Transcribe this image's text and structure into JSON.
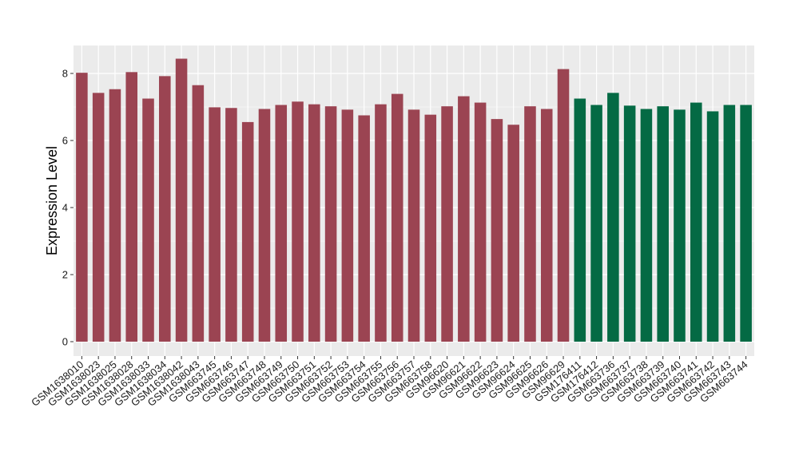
{
  "chart_data": {
    "type": "bar",
    "title": "",
    "xlabel": "",
    "ylabel": "Expression Level",
    "ylim": [
      0,
      8.8
    ],
    "yticks": [
      0,
      2,
      4,
      6,
      8
    ],
    "grid": true,
    "legend": "none",
    "colors": {
      "group1": "#9b4452",
      "group2": "#046a44",
      "panel": "#ebebeb",
      "grid": "#ffffff"
    },
    "categories": [
      "GSM1638010",
      "GSM1638023",
      "GSM1638025",
      "GSM1638028",
      "GSM1638033",
      "GSM1638034",
      "GSM1638042",
      "GSM1638043",
      "GSM663745",
      "GSM663746",
      "GSM663747",
      "GSM663748",
      "GSM663749",
      "GSM663750",
      "GSM663751",
      "GSM663752",
      "GSM663753",
      "GSM663754",
      "GSM663755",
      "GSM663756",
      "GSM663757",
      "GSM663758",
      "GSM96620",
      "GSM96621",
      "GSM96622",
      "GSM96623",
      "GSM96624",
      "GSM96625",
      "GSM96626",
      "GSM96629",
      "GSM176411",
      "GSM176412",
      "GSM663736",
      "GSM663737",
      "GSM663738",
      "GSM663739",
      "GSM663740",
      "GSM663741",
      "GSM663742",
      "GSM663743",
      "GSM663744"
    ],
    "values": [
      8.02,
      7.42,
      7.53,
      8.04,
      7.25,
      7.92,
      8.44,
      7.65,
      6.99,
      6.97,
      6.55,
      6.94,
      7.06,
      7.16,
      7.08,
      7.02,
      6.92,
      6.75,
      7.08,
      7.39,
      6.92,
      6.77,
      7.02,
      7.32,
      7.13,
      6.64,
      6.47,
      7.02,
      6.94,
      8.13,
      7.25,
      7.06,
      7.42,
      7.04,
      6.94,
      7.02,
      6.92,
      7.13,
      6.87,
      7.06,
      7.06
    ],
    "groups": [
      1,
      1,
      1,
      1,
      1,
      1,
      1,
      1,
      1,
      1,
      1,
      1,
      1,
      1,
      1,
      1,
      1,
      1,
      1,
      1,
      1,
      1,
      1,
      1,
      1,
      1,
      1,
      1,
      1,
      1,
      2,
      2,
      2,
      2,
      2,
      2,
      2,
      2,
      2,
      2,
      2
    ]
  }
}
